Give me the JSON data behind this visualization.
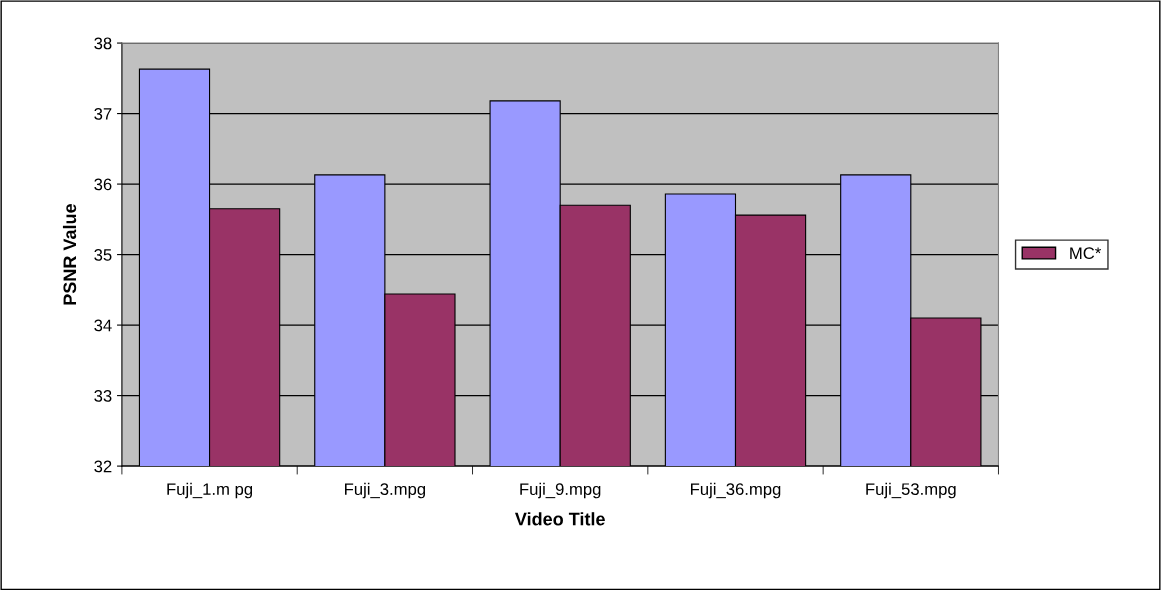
{
  "chart_data": {
    "type": "bar",
    "xlabel": "Video Title",
    "ylabel": "PSNR Value",
    "categories": [
      "Fuji_1.m pg",
      "Fuji_3.mpg",
      "Fuji_9.mpg",
      "Fuji_36.mpg",
      "Fuji_53.mpg"
    ],
    "series": [
      {
        "color": "#9999ff",
        "values": [
          37.63,
          36.13,
          37.18,
          35.86,
          36.13
        ]
      },
      {
        "name": "MC*",
        "color": "#993366",
        "values": [
          35.65,
          34.44,
          35.7,
          35.56,
          34.1
        ]
      }
    ],
    "ylim": [
      32,
      38
    ],
    "yticks": [
      32,
      33,
      34,
      35,
      36,
      37,
      38
    ],
    "grid": "y",
    "legend": "right"
  }
}
